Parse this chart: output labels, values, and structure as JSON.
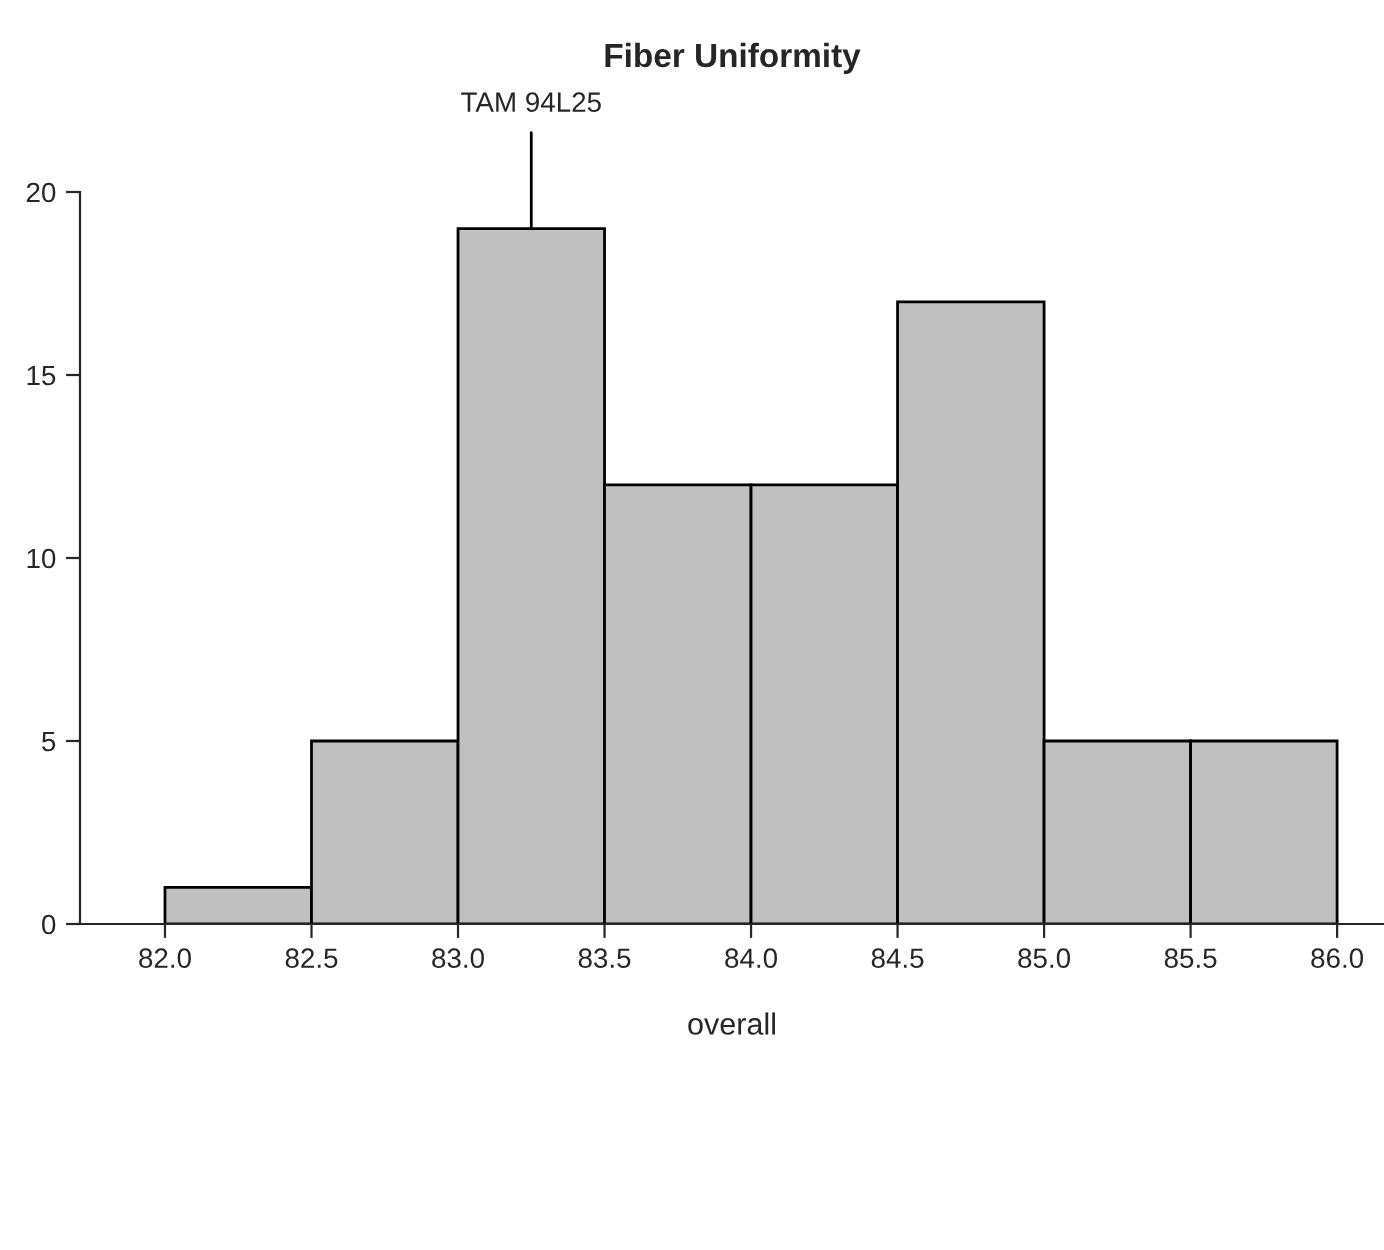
{
  "chart_data": {
    "type": "histogram",
    "title": "Fiber Uniformity",
    "xlabel": "overall",
    "bins": [
      82.0,
      82.5,
      83.0,
      83.5,
      84.0,
      84.5,
      85.0,
      85.5,
      86.0
    ],
    "values": [
      1,
      5,
      19,
      12,
      12,
      17,
      5,
      5
    ],
    "color": "#c0c0c0",
    "xlim": [
      81.71,
      86.16
    ],
    "ylim": [
      0,
      20
    ],
    "xticks": [
      {
        "value": 82.0,
        "label": "82.0"
      },
      {
        "value": 82.5,
        "label": "82.5"
      },
      {
        "value": 83.0,
        "label": "83.0"
      },
      {
        "value": 83.5,
        "label": "83.5"
      },
      {
        "value": 84.0,
        "label": "84.0"
      },
      {
        "value": 84.5,
        "label": "84.5"
      },
      {
        "value": 85.0,
        "label": "85.0"
      },
      {
        "value": 85.5,
        "label": "85.5"
      },
      {
        "value": 86.0,
        "label": "86.0"
      }
    ],
    "yticks": [
      0,
      5,
      10,
      15,
      20
    ],
    "grid": false,
    "legend": false,
    "annotations": [
      {
        "text": "TAM 94L25",
        "x": 83.25,
        "y": 19
      }
    ]
  }
}
